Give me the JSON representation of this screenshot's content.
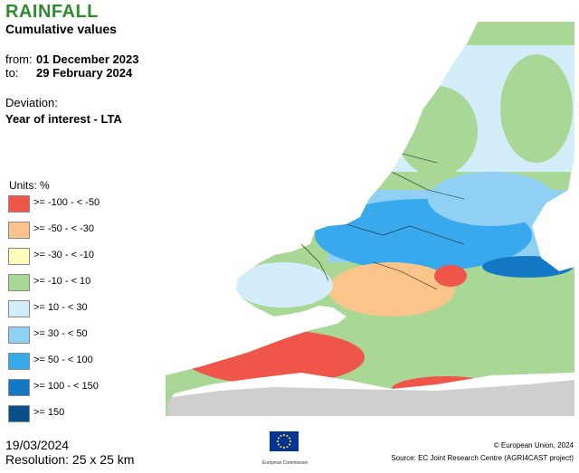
{
  "header": {
    "title": "RAINFALL",
    "subtitle": "Cumulative values"
  },
  "period": {
    "from_label": "from:",
    "from_value": "01 December 2023",
    "to_label": "to:",
    "to_value": "29 February 2024"
  },
  "deviation": {
    "label": "Deviation:",
    "value": "Year of interest - LTA"
  },
  "legend": {
    "units": "Units: %",
    "items": [
      {
        "label": ">= -100 - < -50",
        "color": "#f0554a"
      },
      {
        "label": ">= -50 - < -30",
        "color": "#fac48a"
      },
      {
        "label": ">= -30 - < -10",
        "color": "#fefcbb"
      },
      {
        "label": ">= -10 - < 10",
        "color": "#a8d796"
      },
      {
        "label": ">= 10 - < 30",
        "color": "#d3eefa"
      },
      {
        "label": ">= 30 - < 50",
        "color": "#8fd0f4"
      },
      {
        "label": ">= 50 - < 100",
        "color": "#38a9ec"
      },
      {
        "label": ">= 100 - < 150",
        "color": "#1479c4"
      },
      {
        "label": ">= 150",
        "color": "#0b4f8a"
      }
    ]
  },
  "colors": {
    "no_data": "#cfcfcf",
    "title": "#2e8b2e",
    "eu_blue": "#003399",
    "eu_star": "#ffcc00"
  },
  "footer": {
    "date": "19/03/2024",
    "resolution": "Resolution: 25 x 25 km",
    "logo_caption": "European Commission",
    "copyright": "© European Union, 2024",
    "source": "Source: EC Joint Research Centre (AGRI4CAST project)"
  }
}
